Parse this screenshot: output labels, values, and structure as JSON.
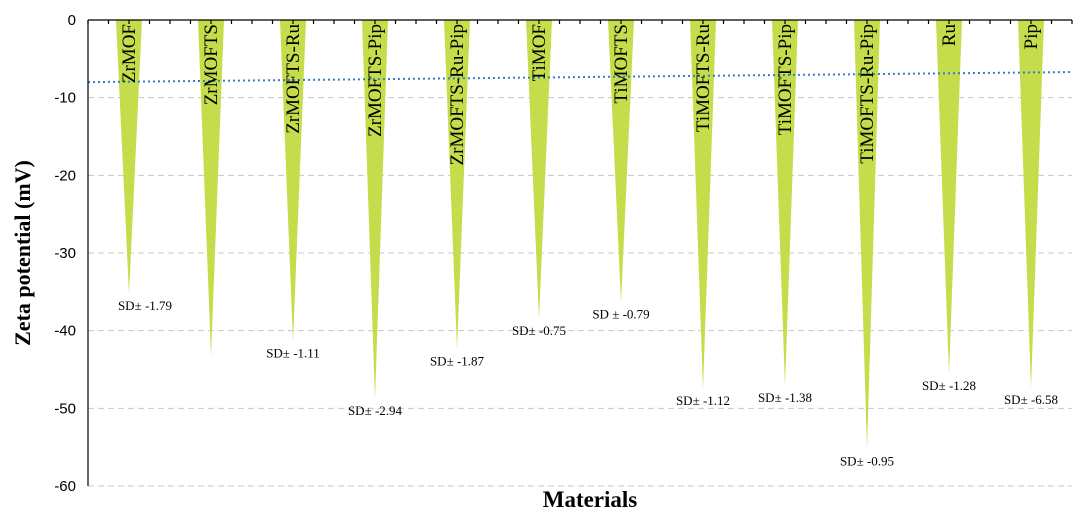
{
  "chart_data": {
    "type": "bar",
    "xlabel": "Materials",
    "ylabel": "Zeta potential (mV)",
    "ylim": [
      -60,
      0
    ],
    "yticks": [
      0,
      -10,
      -20,
      -30,
      -40,
      -50,
      -60
    ],
    "grid": true,
    "colors": {
      "bars": "#c5dd4a",
      "trendline": "#3b7bbf"
    },
    "categories": [
      "ZrMOF",
      "ZrMOFTS",
      "ZrMOFTS-Ru",
      "ZrMOFTS-Pip",
      "ZrMOFTS-Ru-Pip",
      "TiMOF",
      "TiMOFTS",
      "TiMOFTS-Ru",
      "TiMOFTS-Pip",
      "TiMOFTS-Ru-Pip",
      "Ru",
      "Pip"
    ],
    "values": [
      -35.3,
      -43.3,
      -41.4,
      -48.8,
      -42.4,
      -38.5,
      -36.4,
      -47.5,
      -47.1,
      -55.3,
      -45.6,
      -47.4
    ],
    "annotations": [
      "SD± -1.79",
      "SD± -1.11",
      "SD± -2.94",
      "SD± -1.87",
      "SD± -0.75",
      "SD ± -0.79",
      "SD± -1.12",
      "SD± -1.38",
      "SD± -0.95",
      "SD± -1.28",
      "SD± -6.58"
    ],
    "annotation_anchor": [
      "ZrMOF",
      "ZrMOFTS-Ru",
      "ZrMOFTS-Pip",
      "ZrMOFTS-Ru-Pip",
      "TiMOF",
      "TiMOFTS",
      "TiMOFTS-Ru",
      "TiMOFTS-Pip",
      "TiMOFTS-Ru-Pip",
      "Ru",
      "Pip"
    ],
    "trendline": {
      "type": "linear",
      "start": -8.0,
      "end": -6.7,
      "style": "dotted"
    }
  }
}
